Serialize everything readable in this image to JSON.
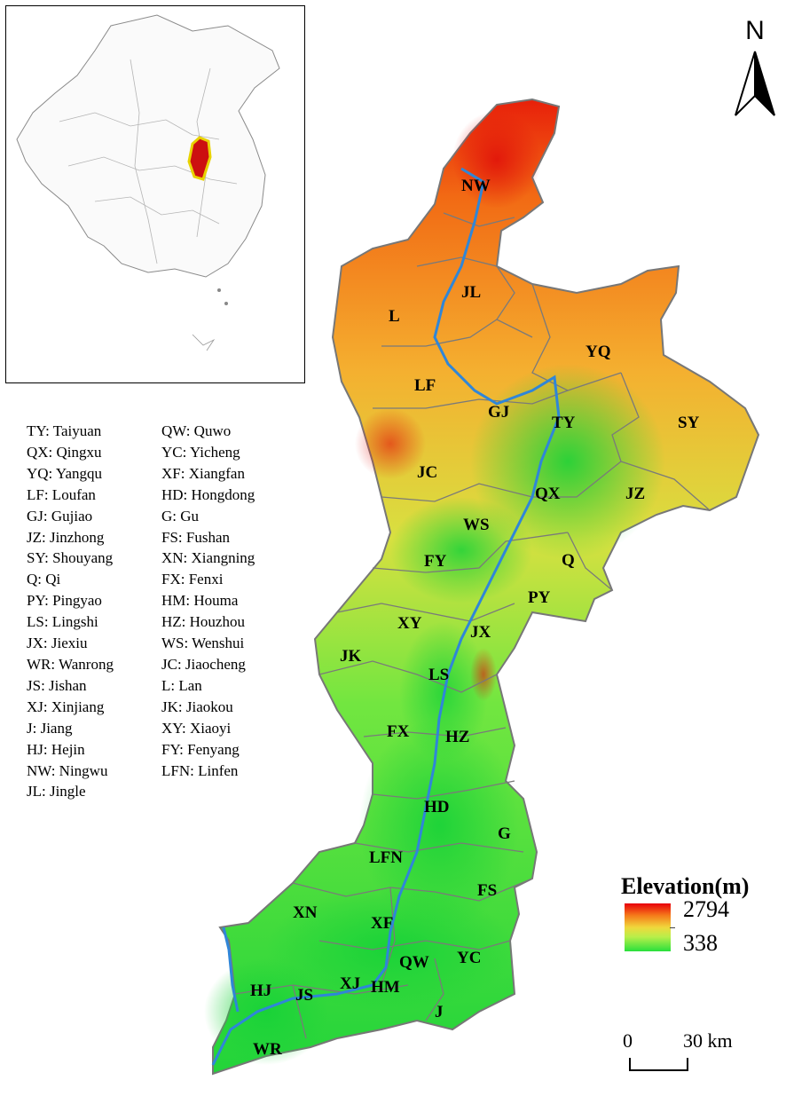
{
  "north_arrow": {
    "letter": "N"
  },
  "abbreviations_col1": [
    "TY: Taiyuan",
    "QX: Qingxu",
    "YQ: Yangqu",
    "LF: Loufan",
    "GJ: Gujiao",
    "JZ: Jinzhong",
    "SY: Shouyang",
    "Q: Qi",
    "PY: Pingyao",
    "LS: Lingshi",
    "JX: Jiexiu",
    "WR: Wanrong",
    "JS: Jishan",
    "XJ: Xinjiang",
    "J: Jiang",
    "HJ: Hejin",
    "NW: Ningwu",
    "JL: Jingle"
  ],
  "abbreviations_col2": [
    "QW: Quwo",
    "YC: Yicheng",
    "XF: Xiangfan",
    "HD: Hongdong",
    "G: Gu",
    "FS: Fushan",
    "XN: Xiangning",
    "FX: Fenxi",
    "HM: Houma",
    "HZ: Houzhou",
    "WS: Wenshui",
    "JC: Jiaocheng",
    "L: Lan",
    "JK: Jiaokou",
    "XY: Xiaoyi",
    "FY: Fenyang",
    "LFN: Linfen"
  ],
  "county_labels": {
    "NW": "NW",
    "JL": "JL",
    "L": "L",
    "YQ": "YQ",
    "LF": "LF",
    "GJ": "GJ",
    "TY": "TY",
    "SY": "SY",
    "JC": "JC",
    "QX": "QX",
    "JZ": "JZ",
    "WS": "WS",
    "FY": "FY",
    "Q": "Q",
    "PY": "PY",
    "XY": "XY",
    "JX": "JX",
    "JK": "JK",
    "LS": "LS",
    "FX": "FX",
    "HZ": "HZ",
    "HD": "HD",
    "G": "G",
    "LFN": "LFN",
    "FS": "FS",
    "XN": "XN",
    "XF": "XF",
    "YC": "YC",
    "QW": "QW",
    "HJ": "HJ",
    "JS": "JS",
    "XJ": "XJ",
    "HM": "HM",
    "J": "J",
    "WR": "WR"
  },
  "elevation_legend": {
    "title": "Elevation(m)",
    "max": "2794",
    "min": "338",
    "colors": {
      "high": "#e8000a",
      "mid": "#f0d83c",
      "low": "#28e03c"
    }
  },
  "scale_bar": {
    "left_label": "0",
    "right_label": "30 km"
  },
  "colors": {
    "river": "#2f86d8",
    "boundary": "#777777",
    "inset_highlight": "#e8d200",
    "inset_region": "#cc1010"
  }
}
